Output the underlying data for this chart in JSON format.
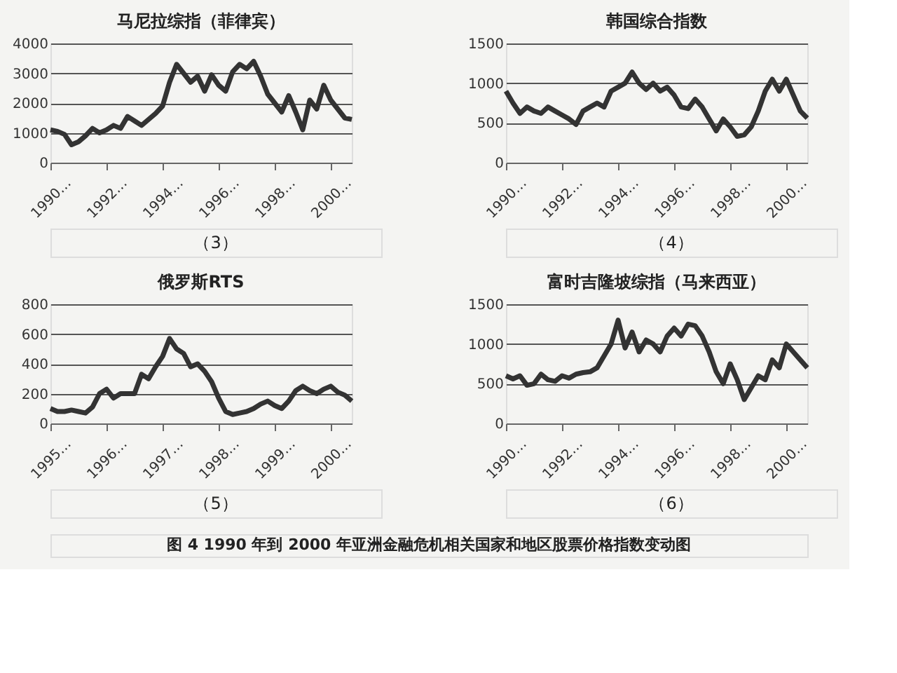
{
  "chart_data": [
    {
      "type": "line",
      "title": "马尼拉综指（菲律宾）",
      "annotations": [
        "（3）"
      ],
      "grid": "y",
      "legend": false,
      "marker": "none",
      "line_style": "solid",
      "categories": [
        "1990…",
        null,
        null,
        null,
        null,
        null,
        null,
        null,
        "1992…",
        null,
        null,
        null,
        null,
        null,
        null,
        null,
        "1994…",
        null,
        null,
        null,
        null,
        null,
        null,
        null,
        "1996…",
        null,
        null,
        null,
        null,
        null,
        null,
        null,
        "1998…",
        null,
        null,
        null,
        null,
        null,
        null,
        null,
        "2000…",
        null,
        null,
        null
      ],
      "ylim": [
        0,
        4000
      ],
      "yticks": [
        0,
        1000,
        2000,
        3000,
        4000
      ],
      "series": [
        {
          "color": "#333333",
          "values": [
            1100,
            1050,
            950,
            600,
            700,
            900,
            1150,
            1000,
            1100,
            1250,
            1150,
            1550,
            1400,
            1250,
            1450,
            1650,
            1900,
            2700,
            3300,
            3000,
            2700,
            2900,
            2400,
            2950,
            2600,
            2400,
            3050,
            3300,
            3150,
            3400,
            2900,
            2300,
            2000,
            1700,
            2250,
            1700,
            1100,
            2100,
            1800,
            2600,
            2100,
            1800,
            1500,
            1450
          ]
        }
      ]
    },
    {
      "type": "line",
      "title": "韩国综合指数",
      "annotations": [
        "（4）"
      ],
      "grid": "y",
      "legend": false,
      "marker": "none",
      "line_style": "solid",
      "categories": [
        "1990…",
        null,
        null,
        null,
        null,
        null,
        null,
        null,
        "1992…",
        null,
        null,
        null,
        null,
        null,
        null,
        null,
        "1994…",
        null,
        null,
        null,
        null,
        null,
        null,
        null,
        "1996…",
        null,
        null,
        null,
        null,
        null,
        null,
        null,
        "1998…",
        null,
        null,
        null,
        null,
        null,
        null,
        null,
        "2000…",
        null,
        null,
        null
      ],
      "ylim": [
        0,
        1500
      ],
      "yticks": [
        0,
        500,
        1000,
        1500
      ],
      "series": [
        {
          "color": "#333333",
          "values": [
            900,
            750,
            620,
            700,
            650,
            620,
            700,
            650,
            600,
            550,
            480,
            650,
            700,
            750,
            700,
            900,
            950,
            1000,
            1140,
            1000,
            920,
            1000,
            900,
            950,
            850,
            700,
            680,
            800,
            700,
            550,
            400,
            550,
            450,
            330,
            350,
            450,
            650,
            900,
            1050,
            900,
            1050,
            850,
            650,
            560
          ]
        }
      ]
    },
    {
      "type": "line",
      "title": "俄罗斯RTS",
      "annotations": [
        "（5）"
      ],
      "grid": "y",
      "legend": false,
      "marker": "none",
      "line_style": "solid",
      "categories": [
        "1995…",
        null,
        null,
        null,
        null,
        null,
        null,
        null,
        "1996…",
        null,
        null,
        null,
        null,
        null,
        null,
        null,
        "1997…",
        null,
        null,
        null,
        null,
        null,
        null,
        null,
        "1998…",
        null,
        null,
        null,
        null,
        null,
        null,
        null,
        "1999…",
        null,
        null,
        null,
        null,
        null,
        null,
        null,
        "2000…",
        null,
        null,
        null
      ],
      "ylim": [
        0,
        800
      ],
      "yticks": [
        0,
        200,
        400,
        600,
        800
      ],
      "series": [
        {
          "color": "#333333",
          "values": [
            100,
            80,
            80,
            90,
            80,
            70,
            110,
            200,
            230,
            170,
            200,
            200,
            200,
            330,
            300,
            380,
            450,
            570,
            500,
            470,
            380,
            400,
            350,
            280,
            170,
            80,
            60,
            70,
            80,
            100,
            130,
            150,
            120,
            100,
            150,
            220,
            250,
            220,
            200,
            230,
            250,
            210,
            190,
            150
          ]
        }
      ]
    },
    {
      "type": "line",
      "title": "富时吉隆坡综指（马来西亚）",
      "annotations": [
        "（6）",
        "图 4    1990 年到 2000 年亚洲金融危机相关国家和地区股票价格指数变动图"
      ],
      "grid": "y",
      "legend": false,
      "marker": "none",
      "line_style": "solid",
      "categories": [
        "1990…",
        null,
        null,
        null,
        null,
        null,
        null,
        null,
        "1992…",
        null,
        null,
        null,
        null,
        null,
        null,
        null,
        "1994…",
        null,
        null,
        null,
        null,
        null,
        null,
        null,
        "1996…",
        null,
        null,
        null,
        null,
        null,
        null,
        null,
        "1998…",
        null,
        null,
        null,
        null,
        null,
        null,
        null,
        "2000…",
        null,
        null,
        null
      ],
      "ylim": [
        0,
        1500
      ],
      "yticks": [
        0,
        500,
        1000,
        1500
      ],
      "series": [
        {
          "color": "#333333",
          "values": [
            600,
            560,
            600,
            480,
            500,
            620,
            550,
            530,
            600,
            570,
            620,
            640,
            650,
            700,
            850,
            1000,
            1300,
            950,
            1150,
            900,
            1050,
            1000,
            900,
            1100,
            1200,
            1100,
            1250,
            1230,
            1100,
            900,
            650,
            500,
            750,
            550,
            300,
            450,
            600,
            550,
            800,
            700,
            1000,
            900,
            800,
            700
          ]
        }
      ]
    }
  ]
}
